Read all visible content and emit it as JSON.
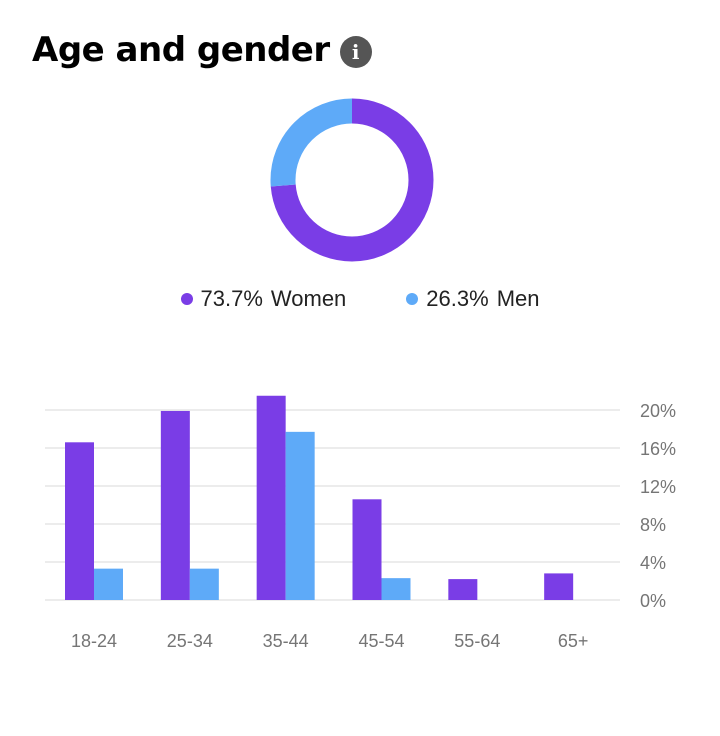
{
  "header": {
    "title": "Age and gender",
    "info_icon": "info-icon"
  },
  "colors": {
    "women": "#7a3de6",
    "men": "#5eaaf8",
    "grid": "#d8d8d8",
    "tick": "#757575"
  },
  "chart_data": [
    {
      "type": "pie",
      "variant": "donut",
      "slices": [
        {
          "label": "Women",
          "value": 73.7,
          "display": "73.7%"
        },
        {
          "label": "Men",
          "value": 26.3,
          "display": "26.3%"
        }
      ]
    },
    {
      "type": "bar",
      "categories": [
        "18-24",
        "25-34",
        "35-44",
        "45-54",
        "55-64",
        "65+"
      ],
      "series": [
        {
          "name": "Women",
          "values": [
            16.6,
            19.9,
            21.5,
            10.6,
            2.2,
            2.8
          ]
        },
        {
          "name": "Men",
          "values": [
            3.3,
            3.3,
            17.7,
            2.3,
            0,
            0
          ]
        }
      ],
      "yticks": [
        "0%",
        "4%",
        "8%",
        "12%",
        "16%",
        "20%"
      ],
      "ylim": [
        0,
        20
      ],
      "grid": true,
      "yaxis_position": "right"
    }
  ]
}
